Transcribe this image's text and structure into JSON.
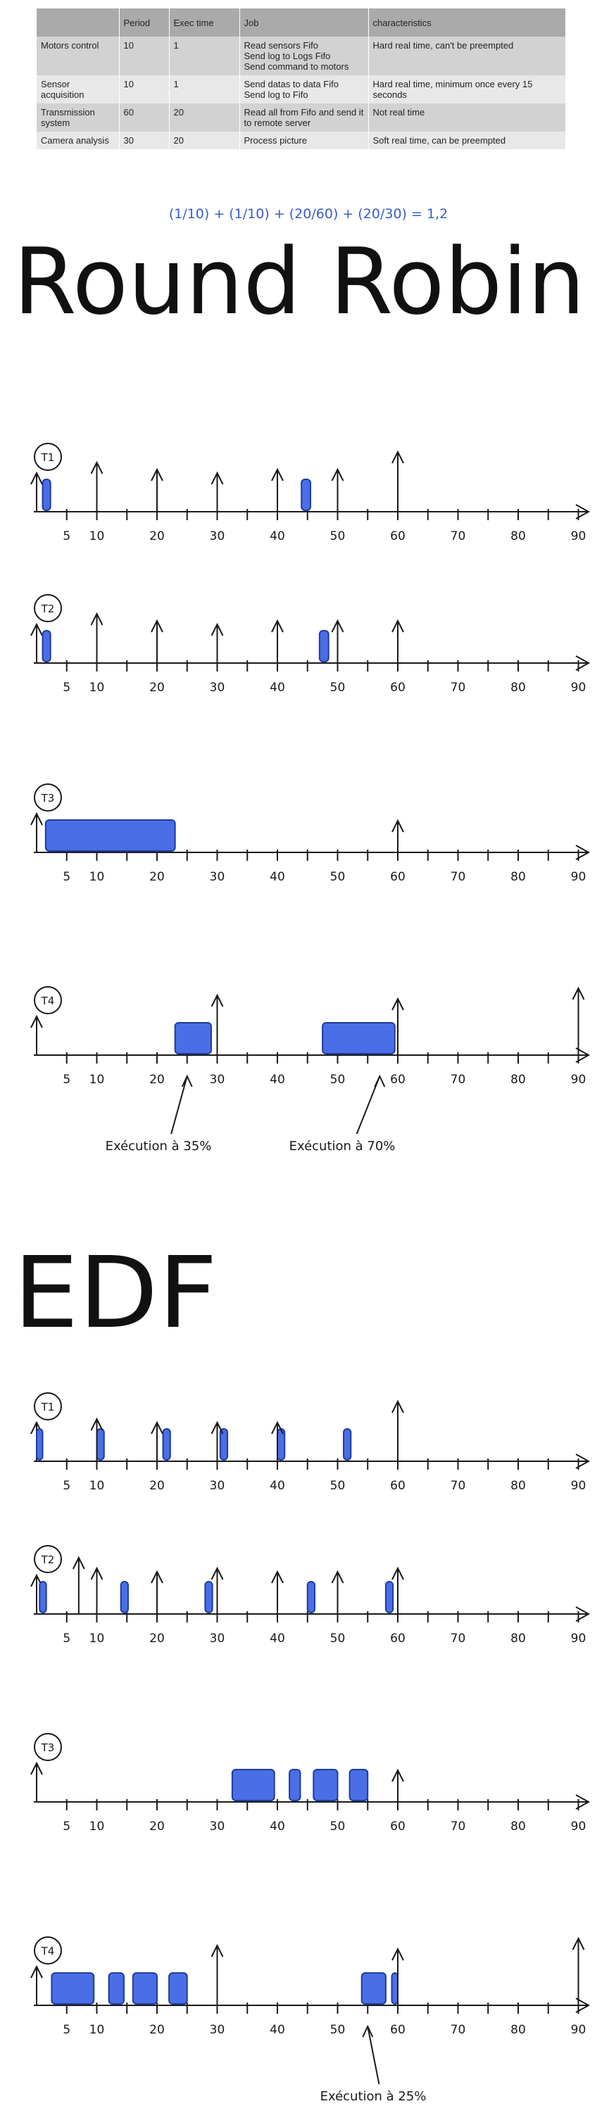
{
  "table": {
    "header": [
      "Period",
      "Exec time",
      "Job",
      "characteristics"
    ],
    "rows": [
      {
        "name": "Motors control",
        "period": 10,
        "exec_time": 1,
        "job": [
          "Read sensors Fifo",
          "Send log to Logs Fifo",
          "Send command to motors"
        ],
        "characteristics": "Hard real time, can't be preempted"
      },
      {
        "name": "Sensor acquisition",
        "period": 10,
        "exec_time": 1,
        "job": [
          "Send datas to data Fifo",
          "Send log to Fifo"
        ],
        "characteristics": "Hard real time, minimum once every 15 seconds"
      },
      {
        "name": "Transmission system",
        "period": 60,
        "exec_time": 20,
        "job": [
          "Read all from Fifo and send it to remote server"
        ],
        "characteristics": "Not real time"
      },
      {
        "name": "Camera analysis",
        "period": 30,
        "exec_time": 20,
        "job": [
          "Process picture"
        ],
        "characteristics": "Soft real time, can be preempted"
      }
    ]
  },
  "formula": "(1/10) + (1/10) + (20/60) + (20/30) = 1,2",
  "axis_ticks": [
    5,
    10,
    20,
    30,
    40,
    50,
    60,
    70,
    80,
    90
  ],
  "sections": [
    {
      "title": "Round Robin",
      "timelines": [
        {
          "task": "T1"
        },
        {
          "task": "T2"
        },
        {
          "task": "T3"
        },
        {
          "task": "T4",
          "annotations": [
            "Exécution à 35%",
            "Exécution à 70%"
          ]
        }
      ]
    },
    {
      "title": "EDF",
      "timelines": [
        {
          "task": "T1"
        },
        {
          "task": "T2"
        },
        {
          "task": "T3"
        },
        {
          "task": "T4",
          "annotations": [
            "Exécution à 25%"
          ]
        }
      ]
    }
  ]
}
